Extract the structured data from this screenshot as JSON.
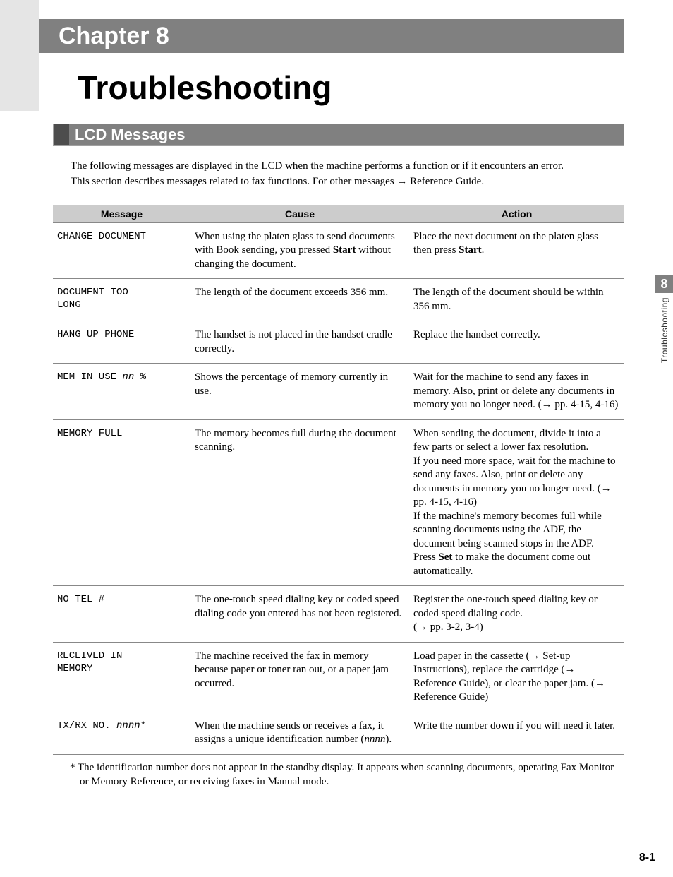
{
  "header": {
    "chapter_label": "Chapter 8",
    "title": "Troubleshooting"
  },
  "section": {
    "heading": "LCD Messages",
    "intro_line1": "The following messages are displayed in the LCD when the machine performs a function or if it encounters an error.",
    "intro_line2": "This section describes messages related to fax functions. For other messages → Reference Guide."
  },
  "table": {
    "columns": [
      "Message",
      "Cause",
      "Action"
    ],
    "rows": [
      {
        "message": "CHANGE DOCUMENT",
        "cause_html": "When using the platen glass to send documents with Book sending, you pressed <b>Start</b> without changing the document.",
        "action_html": "Place the next document on the platen glass then press <b>Start</b>."
      },
      {
        "message": "DOCUMENT TOO\nLONG",
        "cause_html": "The length of the document exceeds 356 mm.",
        "action_html": "The length of the document should be within 356 mm."
      },
      {
        "message": "HANG UP PHONE",
        "cause_html": "The handset is not placed in the handset cradle correctly.",
        "action_html": "Replace the handset correctly."
      },
      {
        "message_html": "MEM IN USE <i>nn</i> %",
        "cause_html": "Shows the percentage of memory currently in use.",
        "action_html": "Wait for the machine to send any faxes in memory. Also, print or delete any documents in memory you no longer need. (→ pp. 4-15, 4-16)"
      },
      {
        "message": "MEMORY FULL",
        "cause_html": "The memory becomes full during the document scanning.",
        "action_html": "When sending the document, divide it into a few parts or select a lower fax resolution.<br>If you need more space, wait for the machine to send any faxes. Also, print or delete any documents in memory you no longer need. (→ pp. 4-15, 4-16)<br>If the machine's memory becomes full while scanning documents using the ADF, the document being scanned stops in the ADF. Press <b>Set</b> to make the document come out automatically."
      },
      {
        "message": "NO TEL #",
        "cause_html": "The one-touch speed dialing key or coded speed dialing code you entered has not been registered.",
        "action_html": "Register the one-touch speed dialing key or coded speed dialing code.<br>(→ pp. 3-2, 3-4)"
      },
      {
        "message": "RECEIVED IN\nMEMORY",
        "cause_html": "The machine received the fax in memory because paper or toner ran out, or a paper jam occurred.",
        "action_html": "Load paper in the cassette (→ Set-up Instructions), replace the cartridge (→ Reference Guide), or clear the paper jam. (→ Reference Guide)"
      },
      {
        "message_html": "TX/RX NO. <i>nnnn</i>*",
        "cause_html": "When the machine sends or receives a fax, it assigns a unique identification number (<i>nnnn</i>).",
        "action_html": "Write the number down if you will need it later."
      }
    ]
  },
  "footnote": "* The identification number does not appear in the standby display. It appears when scanning documents, operating Fax Monitor or Memory Reference, or receiving faxes in Manual mode.",
  "side_tab": {
    "number": "8",
    "text": "Troubleshooting"
  },
  "page_number": "8-1",
  "colors": {
    "header_gray": "#808080",
    "light_gray": "#e5e5e5",
    "th_gray": "#cccccc",
    "dark_square": "#4d4d4d",
    "border": "#888888",
    "text": "#000000",
    "bg": "#ffffff"
  }
}
